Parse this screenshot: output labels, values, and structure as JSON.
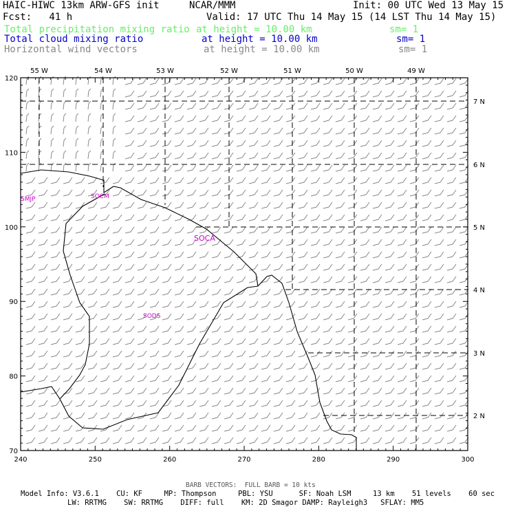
{
  "header": {
    "title_left": "HAIC-HIWC 13km ARW-GFS init",
    "title_center": "NCAR/MMM",
    "init": "Init: 00 UTC Wed 13 May 15",
    "fcst": "Fcst:   41 h",
    "valid": "Valid: 17 UTC Thu 14 May 15 (14 LST Thu 14 May 15)"
  },
  "fields": [
    {
      "name": "Total precipitation mixing ratio",
      "level": "at height = 10.00 km",
      "sm": "sm= 1",
      "color": "#66ee66"
    },
    {
      "name": "Total cloud mixing ratio",
      "level": "at height = 10.00 km",
      "sm": "sm= 1",
      "color": "#0000cc"
    },
    {
      "name": "Horizontal wind vectors",
      "level": "at height = 10.00 km",
      "sm": "sm= 1",
      "color": "#888888"
    }
  ],
  "axes": {
    "x_ticks": [
      "240",
      "250",
      "260",
      "270",
      "280",
      "290",
      "300"
    ],
    "y_ticks": [
      "70",
      "80",
      "90",
      "100",
      "110",
      "120"
    ],
    "lon_labels": [
      "55 W",
      "54 W",
      "53 W",
      "52 W",
      "51 W",
      "50 W",
      "49 W"
    ],
    "lat_labels": [
      "7 N",
      "6 N",
      "5 N",
      "4 N",
      "3 N",
      "2 N"
    ]
  },
  "stations": [
    {
      "id": "SMJP"
    },
    {
      "id": "SOCM"
    },
    {
      "id": "SOCA"
    },
    {
      "id": "SODS"
    }
  ],
  "footer": {
    "barb_note": "BARB VECTORS:  FULL BARB = 10 kts",
    "model_line1": "Model Info: V3.6.1    CU: KF     MP: Thompson     PBL: YSU      SF: Noah LSM     13 km    51 levels    60 sec",
    "model_line2": "LW: RRTMG    SW: RRTMG    DIFF: full    KM: 2D Smagor DAMP: Rayleigh3   SFLAY: MM5"
  }
}
